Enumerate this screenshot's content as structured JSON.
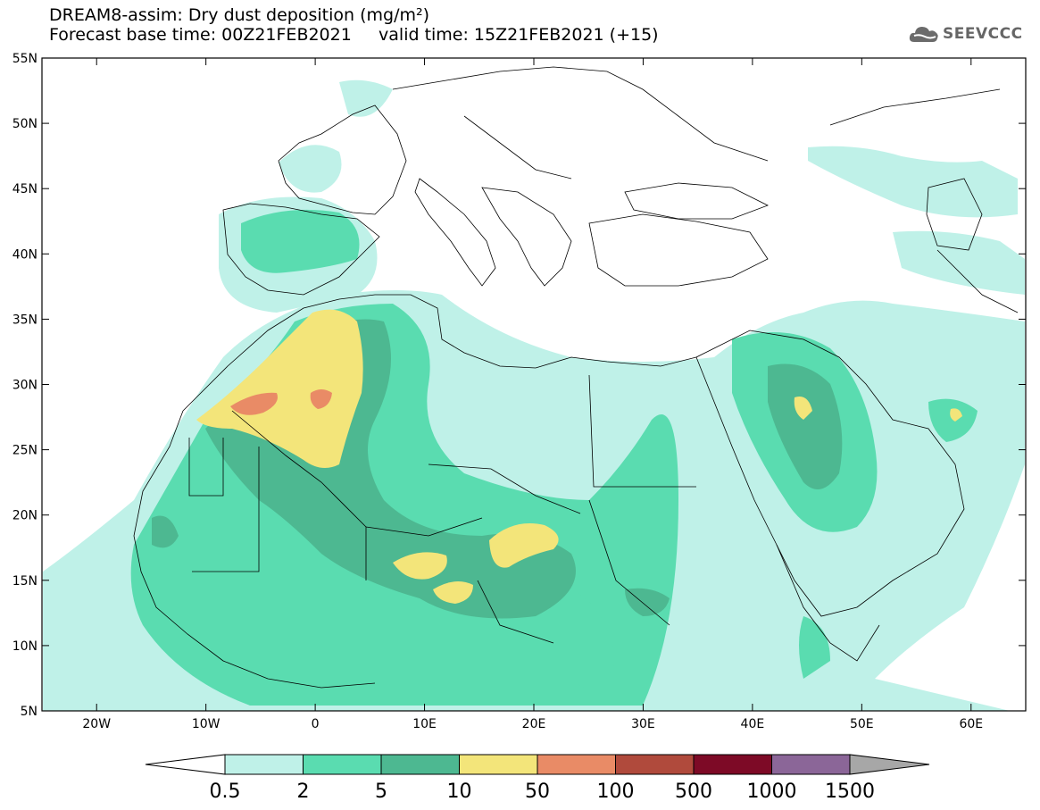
{
  "header": {
    "title_line1": "DREAM8-assim: Dry dust deposition (mg/m²)",
    "title_line2": "Forecast base time: 00Z21FEB2021     valid time: 15Z21FEB2021 (+15)",
    "logo_text": "SEEVCCC"
  },
  "map": {
    "lon_range": [
      -25,
      65
    ],
    "lat_range": [
      5,
      55
    ],
    "lat_ticks": [
      {
        "value": 55,
        "label": "55N"
      },
      {
        "value": 50,
        "label": "50N"
      },
      {
        "value": 45,
        "label": "45N"
      },
      {
        "value": 40,
        "label": "40N"
      },
      {
        "value": 35,
        "label": "35N"
      },
      {
        "value": 30,
        "label": "30N"
      },
      {
        "value": 25,
        "label": "25N"
      },
      {
        "value": 20,
        "label": "20N"
      },
      {
        "value": 15,
        "label": "15N"
      },
      {
        "value": 10,
        "label": "10N"
      },
      {
        "value": 5,
        "label": "5N"
      }
    ],
    "lon_ticks": [
      {
        "value": -20,
        "label": "20W"
      },
      {
        "value": -10,
        "label": "10W"
      },
      {
        "value": 0,
        "label": "0"
      },
      {
        "value": 10,
        "label": "10E"
      },
      {
        "value": 20,
        "label": "20E"
      },
      {
        "value": 30,
        "label": "30E"
      },
      {
        "value": 40,
        "label": "40E"
      },
      {
        "value": 50,
        "label": "50E"
      },
      {
        "value": 60,
        "label": "60E"
      }
    ]
  },
  "colorbar": {
    "bins": [
      {
        "color": "#bff1e8"
      },
      {
        "color": "#5adcb0"
      },
      {
        "color": "#4db891"
      },
      {
        "color": "#f3e57a"
      },
      {
        "color": "#e98b66"
      },
      {
        "color": "#b04a3c"
      },
      {
        "color": "#7d0a26"
      },
      {
        "color": "#8b6698"
      }
    ],
    "below_color": "#ffffff",
    "above_color": "#a7a7a7",
    "labels": [
      "0.5",
      "2",
      "5",
      "10",
      "50",
      "100",
      "500",
      "1000",
      "1500"
    ]
  }
}
